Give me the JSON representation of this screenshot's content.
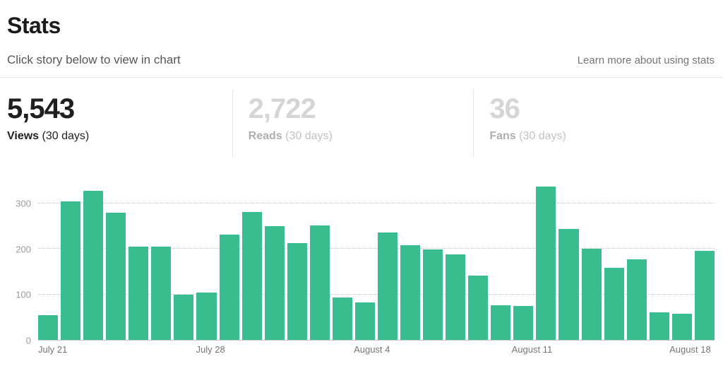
{
  "header": {
    "title": "Stats",
    "hint": "Click story below to view in chart",
    "learn_more": "Learn more about using stats"
  },
  "stats": [
    {
      "value": "5,543",
      "label": "Views",
      "period": "(30 days)",
      "active": true
    },
    {
      "value": "2,722",
      "label": "Reads",
      "period": "(30 days)",
      "active": false
    },
    {
      "value": "36",
      "label": "Fans",
      "period": "(30 days)",
      "active": false
    }
  ],
  "colors": {
    "bar": "#39bd8f",
    "active_text": "#1f1f1f",
    "inactive_number": "#d5d5d5",
    "gridline": "#c6c6c6",
    "axis_label": "#9a9a9a"
  },
  "chart_data": {
    "type": "bar",
    "title": "Views (30 days)",
    "values": [
      55,
      305,
      328,
      280,
      205,
      205,
      99,
      104,
      232,
      281,
      250,
      213,
      252,
      93,
      83,
      236,
      209,
      199,
      188,
      141,
      77,
      75,
      338,
      245,
      200,
      158,
      178,
      60,
      58,
      196
    ],
    "x_tick_labels": [
      "July 21",
      "July 28",
      "August 4",
      "August 11",
      "August 18"
    ],
    "x_tick_indices": [
      0,
      7,
      14,
      21,
      28
    ],
    "y_ticks": [
      0,
      100,
      200,
      300
    ],
    "ylim": [
      0,
      350
    ],
    "grid": "horizontal-dotted",
    "legend": "none"
  }
}
